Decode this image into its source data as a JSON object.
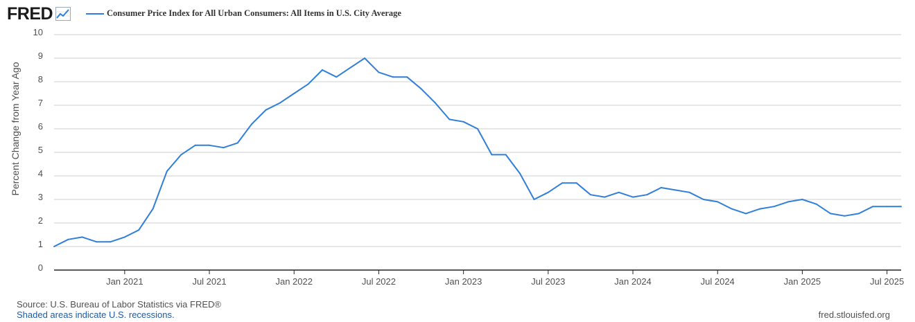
{
  "brand": {
    "name": "FRED"
  },
  "colors": {
    "series": "#2f7ed8",
    "grid": "#cfcfcf",
    "axis": "#222222",
    "text": "#505050",
    "note": "#1f5aa6"
  },
  "chart_data": {
    "type": "line",
    "title": "",
    "ylabel": "Percent Change from Year Ago",
    "xlabel": "",
    "ylim": [
      0,
      10
    ],
    "yticks": [
      0,
      1,
      2,
      3,
      4,
      5,
      6,
      7,
      8,
      9,
      10
    ],
    "xlim": [
      "2020-08",
      "2025-08"
    ],
    "xticks": [
      {
        "x": "2021-01",
        "label": "Jan 2021"
      },
      {
        "x": "2021-07",
        "label": "Jul 2021"
      },
      {
        "x": "2022-01",
        "label": "Jan 2022"
      },
      {
        "x": "2022-07",
        "label": "Jul 2022"
      },
      {
        "x": "2023-01",
        "label": "Jan 2023"
      },
      {
        "x": "2023-07",
        "label": "Jul 2023"
      },
      {
        "x": "2024-01",
        "label": "Jan 2024"
      },
      {
        "x": "2024-07",
        "label": "Jul 2024"
      },
      {
        "x": "2025-01",
        "label": "Jan 2025"
      },
      {
        "x": "2025-07",
        "label": "Jul 2025"
      }
    ],
    "grid": true,
    "legend": "top-left",
    "series": [
      {
        "name": "Consumer Price Index for All Urban Consumers: All Items in U.S. City Average",
        "x": [
          "2020-08",
          "2020-09",
          "2020-10",
          "2020-11",
          "2020-12",
          "2021-01",
          "2021-02",
          "2021-03",
          "2021-04",
          "2021-05",
          "2021-06",
          "2021-07",
          "2021-08",
          "2021-09",
          "2021-10",
          "2021-11",
          "2021-12",
          "2022-01",
          "2022-02",
          "2022-03",
          "2022-04",
          "2022-05",
          "2022-06",
          "2022-07",
          "2022-08",
          "2022-09",
          "2022-10",
          "2022-11",
          "2022-12",
          "2023-01",
          "2023-02",
          "2023-03",
          "2023-04",
          "2023-05",
          "2023-06",
          "2023-07",
          "2023-08",
          "2023-09",
          "2023-10",
          "2023-11",
          "2023-12",
          "2024-01",
          "2024-02",
          "2024-03",
          "2024-04",
          "2024-05",
          "2024-06",
          "2024-07",
          "2024-08",
          "2024-09",
          "2024-10",
          "2024-11",
          "2024-12",
          "2025-01",
          "2025-02",
          "2025-03",
          "2025-04",
          "2025-05",
          "2025-06",
          "2025-07",
          "2025-08"
        ],
        "values": [
          1.0,
          1.3,
          1.4,
          1.2,
          1.2,
          1.4,
          1.7,
          2.6,
          4.2,
          4.9,
          5.3,
          5.3,
          5.2,
          5.4,
          6.2,
          6.8,
          7.1,
          7.5,
          7.9,
          8.5,
          8.2,
          8.6,
          9.0,
          8.4,
          8.2,
          8.2,
          7.7,
          7.1,
          6.4,
          6.3,
          6.0,
          4.9,
          4.9,
          4.1,
          3.0,
          3.3,
          3.7,
          3.7,
          3.2,
          3.1,
          3.3,
          3.1,
          3.2,
          3.5,
          3.4,
          3.3,
          3.0,
          2.9,
          2.6,
          2.4,
          2.6,
          2.7,
          2.9,
          3.0,
          2.8,
          2.4,
          2.3,
          2.4,
          2.7,
          2.7,
          2.7
        ]
      }
    ]
  },
  "footer": {
    "source": "Source: U.S. Bureau of Labor Statistics via FRED®",
    "note": "Shaded areas indicate U.S. recessions.",
    "site": "fred.stlouisfed.org"
  }
}
